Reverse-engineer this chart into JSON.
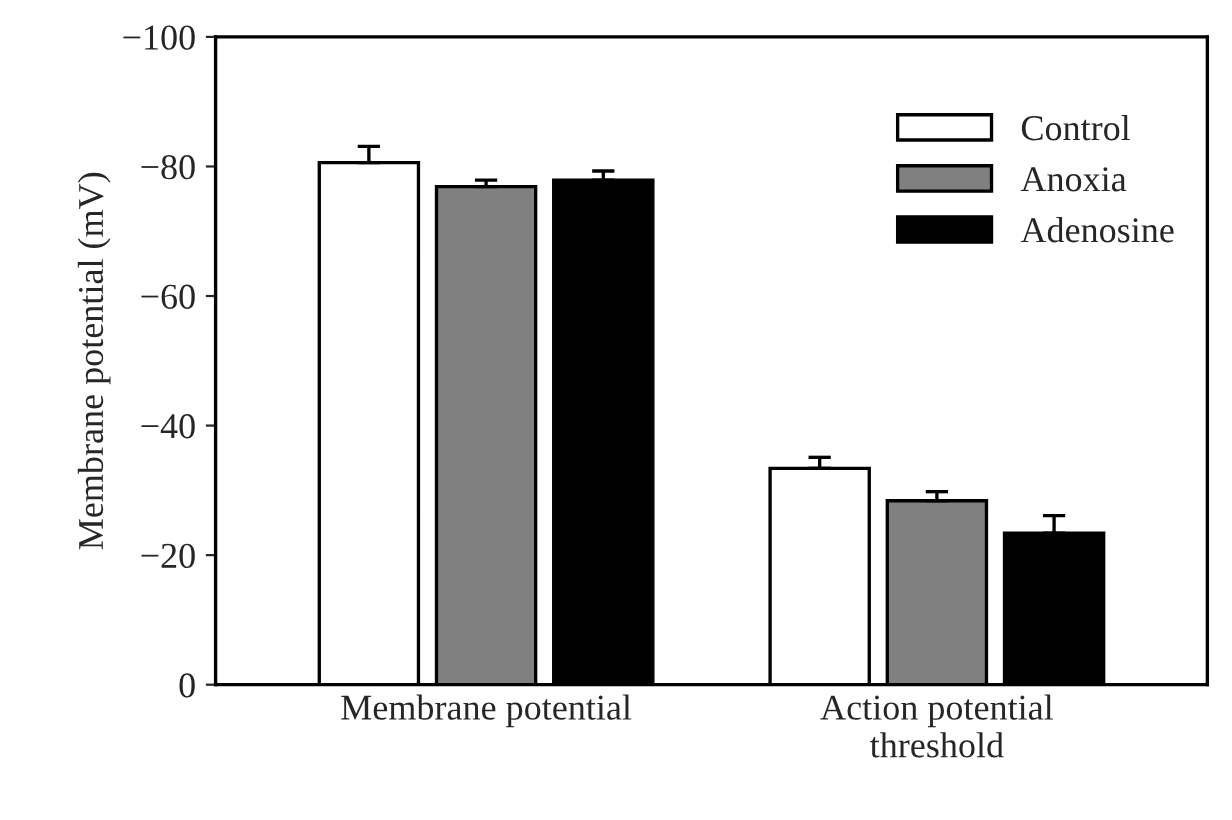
{
  "chart_data": {
    "type": "bar",
    "ylabel": "Membrane potential (mV)",
    "categories": [
      "Membrane potential",
      "Action potential\nthreshold"
    ],
    "series": [
      {
        "name": "Control",
        "color": "#ffffff",
        "values": [
          -80.6,
          -33.4
        ],
        "errors": [
          [
            -83.1,
            -80.6
          ],
          [
            -35.1,
            -33.4
          ]
        ]
      },
      {
        "name": "Anoxia",
        "color": "#808080",
        "values": [
          -76.9,
          -28.4
        ],
        "errors": [
          [
            -77.9,
            -76.9
          ],
          [
            -29.8,
            -28.4
          ]
        ]
      },
      {
        "name": "Adenosine",
        "color": "#000000",
        "values": [
          -77.9,
          -23.4
        ],
        "errors": [
          [
            -79.3,
            -77.9
          ],
          [
            -26.1,
            -23.4
          ]
        ]
      }
    ],
    "ylim": [
      0,
      -100
    ],
    "yticks": [
      {
        "value": 0,
        "label": "0"
      },
      {
        "value": -20,
        "label": "−20"
      },
      {
        "value": -40,
        "label": "−40"
      },
      {
        "value": -60,
        "label": "−60"
      },
      {
        "value": -80,
        "label": "−80"
      },
      {
        "value": -100,
        "label": "−100"
      }
    ],
    "legend": "upper right",
    "grid": false
  }
}
